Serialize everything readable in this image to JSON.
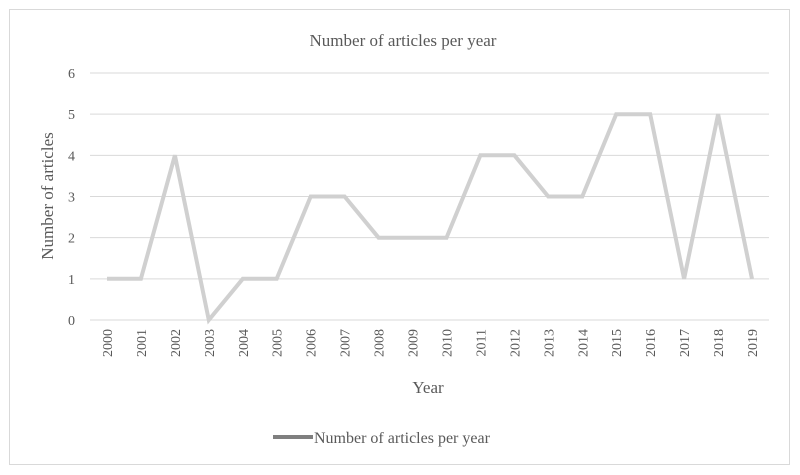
{
  "chart_data": {
    "type": "line",
    "title": "Number of  articles per year",
    "xlabel": "Year",
    "ylabel": "Number of articles",
    "x": [
      "2000",
      "2001",
      "2002",
      "2003",
      "2004",
      "2005",
      "2006",
      "2007",
      "2008",
      "2009",
      "2010",
      "2011",
      "2012",
      "2013",
      "2014",
      "2015",
      "2016",
      "2017",
      "2018",
      "2019"
    ],
    "series": [
      {
        "name": "Number of articles per year",
        "values": [
          1,
          1,
          4,
          0,
          1,
          1,
          3,
          3,
          2,
          2,
          2,
          4,
          4,
          3,
          3,
          5,
          5,
          1,
          5,
          1
        ]
      }
    ],
    "ylim": [
      0,
      6
    ],
    "yticks": [
      "0",
      "1",
      "2",
      "3",
      "4",
      "5",
      "6"
    ],
    "grid": true,
    "legend": "bottom-center",
    "colors": {
      "line": "#d0d0d0",
      "legend_line": "#7f7f7f",
      "grid": "#d9d9d9",
      "text": "#595959",
      "border": "#d9d9d9"
    }
  }
}
